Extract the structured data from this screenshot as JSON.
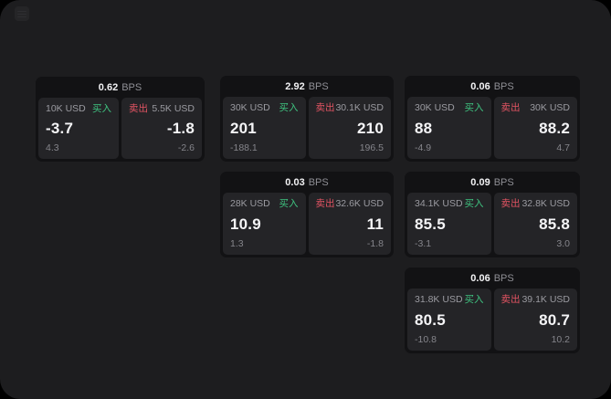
{
  "colors": {
    "canvas": "#000000",
    "page_bg": "#1d1d1f",
    "card_bg": "#121214",
    "panel_bg": "#242427",
    "buy_green": "#3fc380",
    "sell_red": "#e35463",
    "primary_text": "#f5f5f7",
    "muted_text": "#9b9ba1"
  },
  "labels": {
    "buy": "买入",
    "sell": "卖出",
    "bps_unit": "BPS"
  },
  "cards": [
    {
      "bps_value": "0.62",
      "buy": {
        "size": "10K USD",
        "tag": "买入",
        "price": "-3.7",
        "delta": "4.3"
      },
      "sell": {
        "tag": "卖出",
        "size": "5.5K USD",
        "price": "-1.8",
        "delta": "-2.6"
      }
    },
    {
      "bps_value": "2.92",
      "buy": {
        "size": "30K USD",
        "tag": "买入",
        "price": "201",
        "delta": "-188.1"
      },
      "sell": {
        "tag": "卖出",
        "size": "30.1K USD",
        "price": "210",
        "delta": "196.5"
      }
    },
    {
      "bps_value": "0.06",
      "buy": {
        "size": "30K USD",
        "tag": "买入",
        "price": "88",
        "delta": "-4.9"
      },
      "sell": {
        "tag": "卖出",
        "size": "30K USD",
        "price": "88.2",
        "delta": "4.7"
      }
    },
    {
      "bps_value": "0.03",
      "buy": {
        "size": "28K USD",
        "tag": "买入",
        "price": "10.9",
        "delta": "1.3"
      },
      "sell": {
        "tag": "卖出",
        "size": "32.6K USD",
        "price": "11",
        "delta": "-1.8"
      }
    },
    {
      "bps_value": "0.09",
      "buy": {
        "size": "34.1K USD",
        "tag": "买入",
        "price": "85.5",
        "delta": "-3.1"
      },
      "sell": {
        "tag": "卖出",
        "size": "32.8K USD",
        "price": "85.8",
        "delta": "3.0"
      }
    },
    {
      "bps_value": "0.06",
      "buy": {
        "size": "31.8K USD",
        "tag": "买入",
        "price": "80.5",
        "delta": "-10.8"
      },
      "sell": {
        "tag": "卖出",
        "size": "39.1K USD",
        "price": "80.7",
        "delta": "10.2"
      }
    }
  ]
}
